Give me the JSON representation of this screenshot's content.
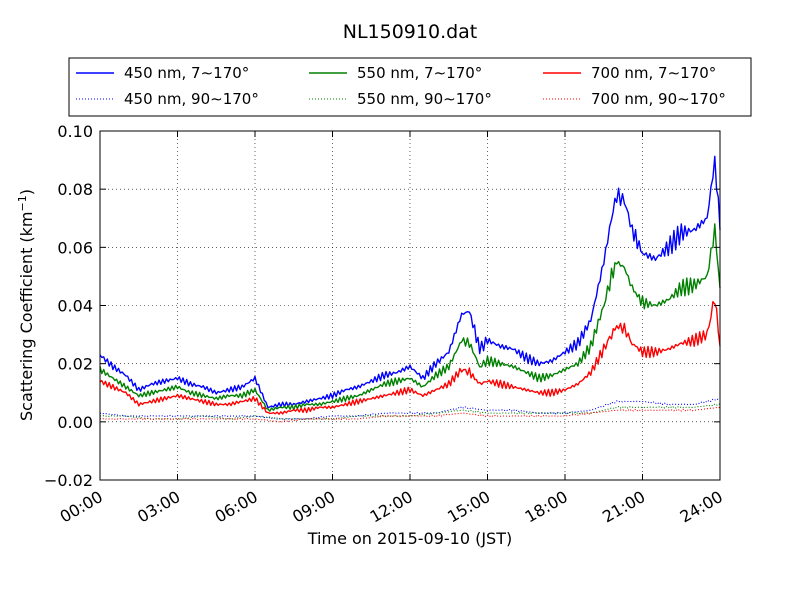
{
  "chart_data": {
    "type": "line",
    "title": "NL150910.dat",
    "xlabel": "Time on 2015-09-10 (JST)",
    "ylabel": "Scattering Coefficient (km",
    "ylabel_sup": "−1",
    "ylabel_close": ")",
    "xlim_hours": [
      0,
      24
    ],
    "ylim": [
      -0.02,
      0.1
    ],
    "x_ticks": [
      {
        "h": 0,
        "label": "00:00"
      },
      {
        "h": 3,
        "label": "03:00"
      },
      {
        "h": 6,
        "label": "06:00"
      },
      {
        "h": 9,
        "label": "09:00"
      },
      {
        "h": 12,
        "label": "12:00"
      },
      {
        "h": 15,
        "label": "15:00"
      },
      {
        "h": 18,
        "label": "18:00"
      },
      {
        "h": 21,
        "label": "21:00"
      },
      {
        "h": 24,
        "label": "24:00"
      }
    ],
    "y_ticks": [
      {
        "v": -0.02,
        "label": "−0.02"
      },
      {
        "v": 0.0,
        "label": "0.00"
      },
      {
        "v": 0.02,
        "label": "0.02"
      },
      {
        "v": 0.04,
        "label": "0.04"
      },
      {
        "v": 0.06,
        "label": "0.06"
      },
      {
        "v": 0.08,
        "label": "0.08"
      },
      {
        "v": 0.1,
        "label": "0.10"
      }
    ],
    "grid": true,
    "legend_placement": "above plot",
    "series": [
      {
        "name": "450 nm, 7∼170°",
        "color": "#0000ff",
        "style": "solid",
        "x": [
          0,
          0.5,
          1,
          1.5,
          2,
          2.5,
          3,
          3.5,
          4,
          4.5,
          5,
          5.5,
          6,
          6.5,
          7,
          7.5,
          8,
          8.5,
          9,
          9.5,
          10,
          10.5,
          11,
          11.5,
          12,
          12.5,
          13,
          13.5,
          14,
          14.3,
          14.7,
          15,
          15.5,
          16,
          16.5,
          17,
          17.5,
          18,
          18.5,
          19,
          19.5,
          19.8,
          20,
          20.3,
          20.6,
          21,
          21.5,
          22,
          22.5,
          23,
          23.5,
          23.8,
          24
        ],
        "y": [
          0.023,
          0.019,
          0.016,
          0.011,
          0.013,
          0.014,
          0.015,
          0.013,
          0.012,
          0.01,
          0.011,
          0.012,
          0.015,
          0.005,
          0.006,
          0.006,
          0.007,
          0.008,
          0.009,
          0.011,
          0.012,
          0.014,
          0.016,
          0.017,
          0.019,
          0.015,
          0.02,
          0.024,
          0.037,
          0.038,
          0.025,
          0.028,
          0.026,
          0.025,
          0.022,
          0.02,
          0.021,
          0.024,
          0.027,
          0.035,
          0.055,
          0.07,
          0.078,
          0.076,
          0.066,
          0.058,
          0.056,
          0.06,
          0.065,
          0.066,
          0.07,
          0.09,
          0.066
        ]
      },
      {
        "name": "550 nm, 7∼170°",
        "color": "#008000",
        "style": "solid",
        "x": [
          0,
          0.5,
          1,
          1.5,
          2,
          2.5,
          3,
          3.5,
          4,
          4.5,
          5,
          5.5,
          6,
          6.5,
          7,
          7.5,
          8,
          8.5,
          9,
          9.5,
          10,
          10.5,
          11,
          11.5,
          12,
          12.5,
          13,
          13.5,
          14,
          14.3,
          14.7,
          15,
          15.5,
          16,
          16.5,
          17,
          17.5,
          18,
          18.5,
          19,
          19.5,
          19.8,
          20,
          20.3,
          20.6,
          21,
          21.5,
          22,
          22.5,
          23,
          23.5,
          23.8,
          24
        ],
        "y": [
          0.018,
          0.015,
          0.012,
          0.009,
          0.01,
          0.011,
          0.012,
          0.01,
          0.009,
          0.008,
          0.009,
          0.009,
          0.011,
          0.004,
          0.005,
          0.005,
          0.006,
          0.006,
          0.007,
          0.008,
          0.009,
          0.011,
          0.013,
          0.014,
          0.015,
          0.012,
          0.016,
          0.019,
          0.028,
          0.027,
          0.019,
          0.021,
          0.02,
          0.019,
          0.017,
          0.015,
          0.016,
          0.018,
          0.02,
          0.026,
          0.04,
          0.05,
          0.055,
          0.053,
          0.046,
          0.041,
          0.04,
          0.042,
          0.046,
          0.047,
          0.05,
          0.066,
          0.046
        ]
      },
      {
        "name": "700 nm, 7∼170°",
        "color": "#ff0000",
        "style": "solid",
        "x": [
          0,
          0.5,
          1,
          1.5,
          2,
          2.5,
          3,
          3.5,
          4,
          4.5,
          5,
          5.5,
          6,
          6.5,
          7,
          7.5,
          8,
          8.5,
          9,
          9.5,
          10,
          10.5,
          11,
          11.5,
          12,
          12.5,
          13,
          13.5,
          14,
          14.3,
          14.7,
          15,
          15.5,
          16,
          16.5,
          17,
          17.5,
          18,
          18.5,
          19,
          19.5,
          19.8,
          20,
          20.3,
          20.6,
          21,
          21.5,
          22,
          22.5,
          23,
          23.5,
          23.8,
          24
        ],
        "y": [
          0.014,
          0.012,
          0.01,
          0.006,
          0.007,
          0.008,
          0.009,
          0.008,
          0.007,
          0.006,
          0.006,
          0.007,
          0.008,
          0.003,
          0.003,
          0.004,
          0.004,
          0.005,
          0.005,
          0.006,
          0.007,
          0.008,
          0.009,
          0.01,
          0.011,
          0.009,
          0.011,
          0.013,
          0.018,
          0.017,
          0.013,
          0.014,
          0.013,
          0.012,
          0.011,
          0.01,
          0.01,
          0.011,
          0.013,
          0.017,
          0.025,
          0.03,
          0.033,
          0.032,
          0.027,
          0.024,
          0.024,
          0.025,
          0.027,
          0.028,
          0.03,
          0.043,
          0.026
        ]
      },
      {
        "name": "450 nm, 90∼170°",
        "color": "#0000ff",
        "style": "dotted",
        "x": [
          0,
          1,
          2,
          3,
          4,
          5,
          6,
          7,
          8,
          9,
          10,
          11,
          12,
          13,
          14,
          15,
          16,
          17,
          18,
          19,
          20,
          21,
          22,
          23,
          24
        ],
        "y": [
          0.003,
          0.002,
          0.002,
          0.002,
          0.002,
          0.002,
          0.002,
          0.001,
          0.001,
          0.002,
          0.002,
          0.003,
          0.003,
          0.003,
          0.005,
          0.004,
          0.004,
          0.003,
          0.003,
          0.004,
          0.007,
          0.007,
          0.006,
          0.006,
          0.008
        ]
      },
      {
        "name": "550 nm, 90∼170°",
        "color": "#008000",
        "style": "dotted",
        "x": [
          0,
          1,
          2,
          3,
          4,
          5,
          6,
          7,
          8,
          9,
          10,
          11,
          12,
          13,
          14,
          15,
          16,
          17,
          18,
          19,
          20,
          21,
          22,
          23,
          24
        ],
        "y": [
          0.002,
          0.002,
          0.001,
          0.001,
          0.002,
          0.001,
          0.002,
          0.001,
          0.001,
          0.001,
          0.002,
          0.002,
          0.002,
          0.003,
          0.004,
          0.003,
          0.003,
          0.003,
          0.003,
          0.003,
          0.005,
          0.005,
          0.005,
          0.005,
          0.006
        ]
      },
      {
        "name": "700 nm, 90∼170°",
        "color": "#ff0000",
        "style": "dotted",
        "x": [
          0,
          1,
          2,
          3,
          4,
          5,
          6,
          7,
          8,
          9,
          10,
          11,
          12,
          13,
          14,
          15,
          16,
          17,
          18,
          19,
          20,
          21,
          22,
          23,
          24
        ],
        "y": [
          0.001,
          0.001,
          0.001,
          0.001,
          0.001,
          0.001,
          0.001,
          0.0,
          0.001,
          0.001,
          0.001,
          0.002,
          0.002,
          0.002,
          0.003,
          0.002,
          0.002,
          0.002,
          0.002,
          0.003,
          0.004,
          0.004,
          0.004,
          0.004,
          0.005
        ]
      }
    ]
  }
}
